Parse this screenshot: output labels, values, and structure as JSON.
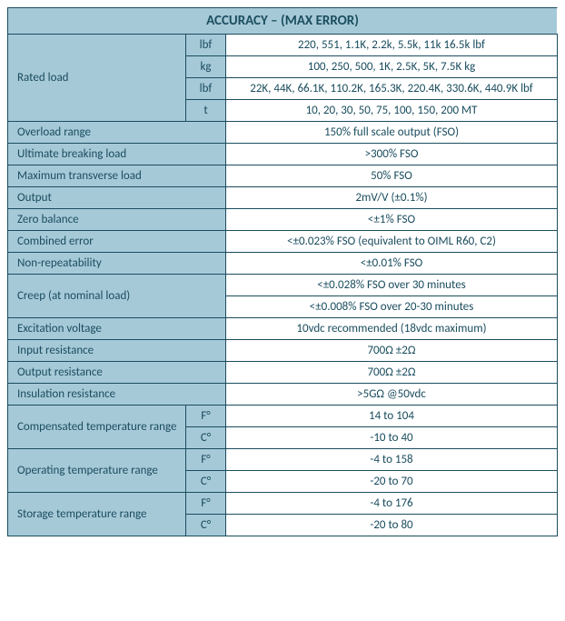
{
  "title": "ACCURACY – (MAX ERROR)",
  "colors": {
    "header_bg": "#a6c9d8",
    "header_text": "#1a4d5e",
    "border": "#1a4d5e",
    "value_bg": "#ffffff"
  },
  "ratedLoad": {
    "label": "Rated load",
    "rows": [
      {
        "unit": "lbf",
        "value": "220, 551, 1.1K, 2.2k, 5.5k, 11k 16.5k lbf"
      },
      {
        "unit": "kg",
        "value": "100, 250, 500, 1K, 2.5K, 5K, 7.5K kg"
      },
      {
        "unit": "lbf",
        "value": "22K, 44K, 66.1K, 110.2K, 165.3K, 220.4K, 330.6K, 440.9K lbf"
      },
      {
        "unit": "t",
        "value": "10, 20, 30, 50, 75, 100, 150, 200 MT"
      }
    ]
  },
  "simpleRows": [
    {
      "label": "Overload range",
      "value": "150% full scale output (FSO)"
    },
    {
      "label": "Ultimate breaking load",
      "value": ">300% FSO"
    },
    {
      "label": "Maximum transverse load",
      "value": "50% FSO"
    },
    {
      "label": "Output",
      "value": "2mV/V (±0.1%)"
    },
    {
      "label": "Zero balance",
      "value": "<±1% FSO"
    },
    {
      "label": "Combined error",
      "value": "<±0.023% FSO (equivalent to OIML R60, C2)"
    },
    {
      "label": "Non-repeatability",
      "value": "<±0.01% FSO"
    }
  ],
  "creep": {
    "label": "Creep (at nominal load)",
    "values": [
      "<±0.028% FSO over 30 minutes",
      "<±0.008% FSO over 20-30 minutes"
    ]
  },
  "simpleRows2": [
    {
      "label": "Excitation voltage",
      "value": "10vdc recommended (18vdc maximum)"
    },
    {
      "label": "Input resistance",
      "value": "700Ω ±2Ω"
    },
    {
      "label": "Output resistance",
      "value": "700Ω ±2Ω"
    },
    {
      "label": "Insulation resistance",
      "value": ">5GΩ @50vdc"
    }
  ],
  "tempRows": [
    {
      "label": "Compensated temperature range",
      "units": [
        {
          "unit": "F°",
          "value": "14 to 104"
        },
        {
          "unit": "C°",
          "value": "-10 to 40"
        }
      ]
    },
    {
      "label": "Operating temperature range",
      "units": [
        {
          "unit": "F°",
          "value": "-4 to 158"
        },
        {
          "unit": "C°",
          "value": "-20 to 70"
        }
      ]
    },
    {
      "label": "Storage temperature range",
      "units": [
        {
          "unit": "F°",
          "value": "-4 to 176"
        },
        {
          "unit": "C°",
          "value": "-20 to 80"
        }
      ]
    }
  ]
}
